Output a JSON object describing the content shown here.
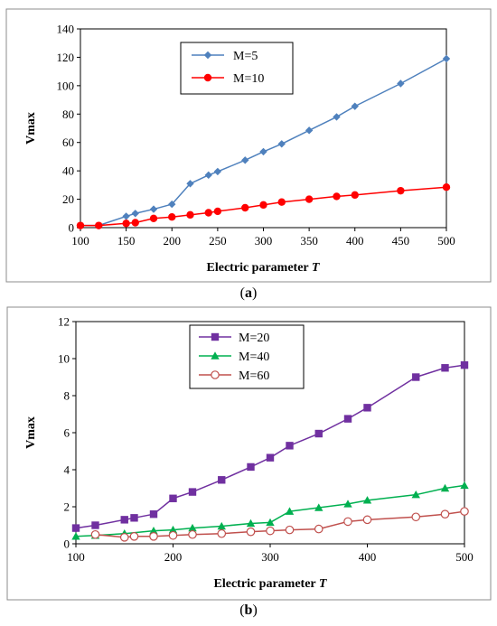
{
  "chart_data": [
    {
      "panel_label": "a",
      "type": "line",
      "xlabel": "Electric parameter",
      "xlabel_italic": "T",
      "ylabel": "Vmax",
      "xlim": [
        100,
        500
      ],
      "ylim": [
        0,
        140
      ],
      "x_ticks": [
        "100",
        "150",
        "200",
        "250",
        "300",
        "350",
        "400",
        "450",
        "500"
      ],
      "y_ticks": [
        "0",
        "20",
        "40",
        "60",
        "80",
        "100",
        "120",
        "140"
      ],
      "legend_position": "top-center",
      "grid": false,
      "series": [
        {
          "name": "M=5",
          "color": "#4f81bd",
          "marker": "diamond",
          "x": [
            100,
            120,
            150,
            160,
            180,
            200,
            220,
            240,
            250,
            280,
            300,
            320,
            350,
            380,
            400,
            450,
            500
          ],
          "y": [
            1.5,
            1.5,
            8,
            10,
            13,
            16.5,
            31,
            37,
            39.5,
            47.5,
            53.5,
            59,
            68.5,
            78,
            85.5,
            101.5,
            119
          ]
        },
        {
          "name": "M=10",
          "color": "#ff0000",
          "marker": "circle",
          "x": [
            100,
            120,
            150,
            160,
            180,
            200,
            220,
            240,
            250,
            280,
            300,
            320,
            350,
            380,
            400,
            450,
            500
          ],
          "y": [
            1.5,
            1.5,
            3,
            3.5,
            6.5,
            7.5,
            9,
            10.5,
            11.5,
            14,
            16,
            18,
            20,
            22,
            23,
            26,
            28.5
          ]
        }
      ]
    },
    {
      "panel_label": "b",
      "type": "line",
      "xlabel": "Electric parameter",
      "xlabel_italic": "T",
      "ylabel": "Vmax",
      "xlim": [
        100,
        500
      ],
      "ylim": [
        0,
        12
      ],
      "x_ticks": [
        "100",
        "200",
        "300",
        "400",
        "500"
      ],
      "y_ticks": [
        "0",
        "2",
        "4",
        "6",
        "8",
        "10",
        "12"
      ],
      "legend_position": "top-center",
      "grid": false,
      "series": [
        {
          "name": "M=20",
          "color": "#7030a0",
          "marker": "square",
          "x": [
            100,
            120,
            150,
            160,
            180,
            200,
            220,
            250,
            280,
            300,
            320,
            350,
            380,
            400,
            450,
            480,
            500
          ],
          "y": [
            0.85,
            1.0,
            1.3,
            1.4,
            1.6,
            2.45,
            2.8,
            3.45,
            4.15,
            4.65,
            5.3,
            5.95,
            6.75,
            7.35,
            9.0,
            9.5,
            9.65
          ]
        },
        {
          "name": "M=40",
          "color": "#00b050",
          "marker": "triangle",
          "x": [
            100,
            120,
            150,
            180,
            200,
            220,
            250,
            280,
            300,
            320,
            350,
            380,
            400,
            450,
            480,
            500
          ],
          "y": [
            0.4,
            0.45,
            0.55,
            0.7,
            0.75,
            0.85,
            0.95,
            1.1,
            1.15,
            1.75,
            1.95,
            2.15,
            2.35,
            2.65,
            3.0,
            3.15
          ]
        },
        {
          "name": "M=60",
          "color": "#c0504d",
          "marker": "open-circle",
          "x": [
            120,
            150,
            160,
            180,
            200,
            220,
            250,
            280,
            300,
            320,
            350,
            380,
            400,
            450,
            480,
            500
          ],
          "y": [
            0.5,
            0.35,
            0.4,
            0.4,
            0.45,
            0.5,
            0.55,
            0.65,
            0.7,
            0.75,
            0.8,
            1.2,
            1.3,
            1.45,
            1.6,
            1.75
          ]
        }
      ]
    }
  ]
}
